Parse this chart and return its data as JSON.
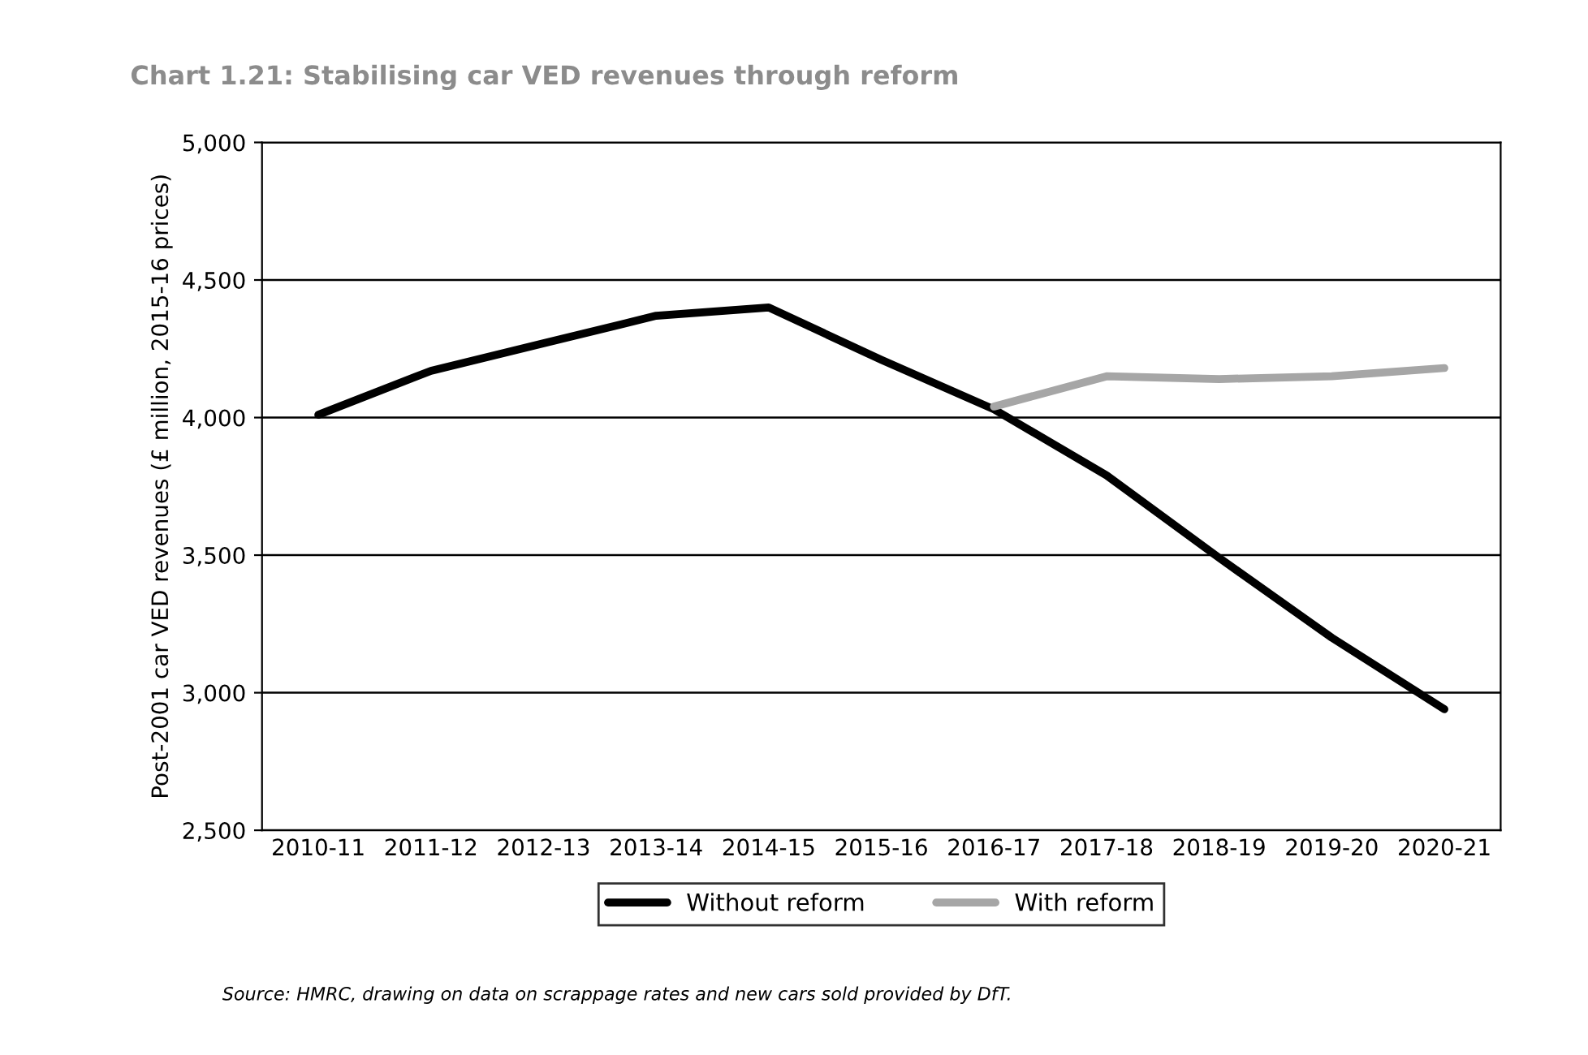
{
  "chart_data": {
    "type": "line",
    "title": "Chart 1.21: Stabilising car VED revenues through reform",
    "ylabel": "Post-2001 car VED revenues (£ million, 2015-16 prices)",
    "categories": [
      "2010-11",
      "2011-12",
      "2012-13",
      "2013-14",
      "2014-15",
      "2015-16",
      "2016-17",
      "2017-18",
      "2018-19",
      "2019-20",
      "2020-21"
    ],
    "series": [
      {
        "name": "Without reform",
        "color": "#000000",
        "values": [
          4010,
          4170,
          4270,
          4370,
          4400,
          4210,
          4030,
          3790,
          3490,
          3200,
          2940
        ]
      },
      {
        "name": "With reform",
        "color": "#a6a6a6",
        "values": [
          null,
          null,
          null,
          null,
          null,
          null,
          4040,
          4150,
          4140,
          4150,
          4180
        ]
      }
    ],
    "ylim": [
      2500,
      5000
    ],
    "yticks": [
      {
        "value": 2500,
        "label": "2,500"
      },
      {
        "value": 3000,
        "label": "3,000"
      },
      {
        "value": 3500,
        "label": "3,500"
      },
      {
        "value": 4000,
        "label": "4,000"
      },
      {
        "value": 4500,
        "label": "4,500"
      },
      {
        "value": 5000,
        "label": "5,000"
      }
    ],
    "grid": "y",
    "legend": "bottom",
    "marker": "none",
    "line_style": "solid",
    "annotations": [
      "Source: HMRC, drawing on data on scrappage rates and new cars sold provided by DfT."
    ]
  }
}
